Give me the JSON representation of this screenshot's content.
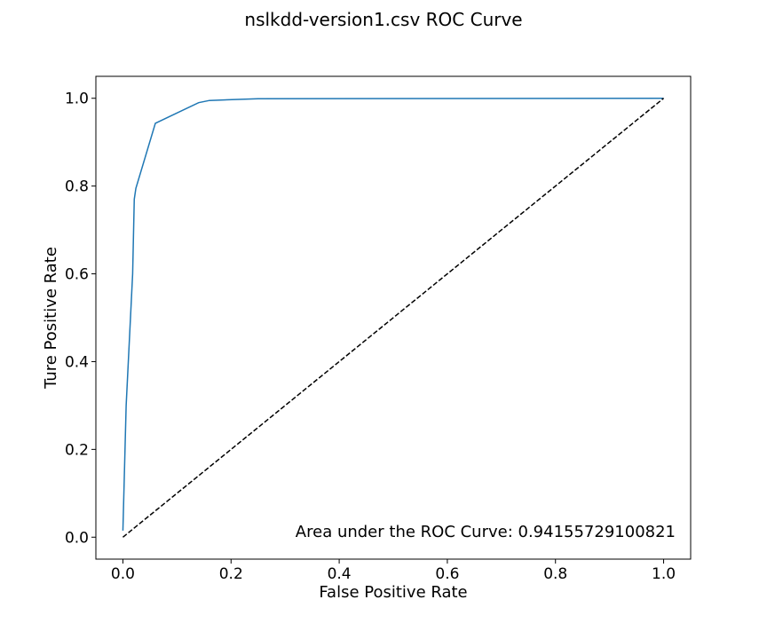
{
  "chart_data": {
    "type": "line",
    "title": "nslkdd-version1.csv ROC Curve",
    "xlabel": "False Positive Rate",
    "ylabel": "Ture Positive Rate",
    "xlim": [
      -0.05,
      1.05
    ],
    "ylim": [
      -0.05,
      1.05
    ],
    "xticks": [
      0.0,
      0.2,
      0.4,
      0.6,
      0.8,
      1.0
    ],
    "xtick_labels": [
      "0.0",
      "0.2",
      "0.4",
      "0.6",
      "0.8",
      "1.0"
    ],
    "yticks": [
      0.0,
      0.2,
      0.4,
      0.6,
      0.8,
      1.0
    ],
    "ytick_labels": [
      "0.0",
      "0.2",
      "0.4",
      "0.6",
      "0.8",
      "1.0"
    ],
    "grid": false,
    "annotation": "Area under the ROC Curve: 0.94155729100821",
    "series": [
      {
        "color": "#1f77b4",
        "style": "solid",
        "x": [
          0.0,
          0.006,
          0.018,
          0.021,
          0.024,
          0.06,
          0.14,
          0.16,
          0.25,
          1.0
        ],
        "y": [
          0.015,
          0.3,
          0.6,
          0.77,
          0.795,
          0.943,
          0.99,
          0.995,
          0.999,
          1.0
        ]
      },
      {
        "color": "#000000",
        "style": "dashed",
        "x": [
          0.0,
          1.0
        ],
        "y": [
          0.0,
          1.0
        ]
      }
    ]
  }
}
